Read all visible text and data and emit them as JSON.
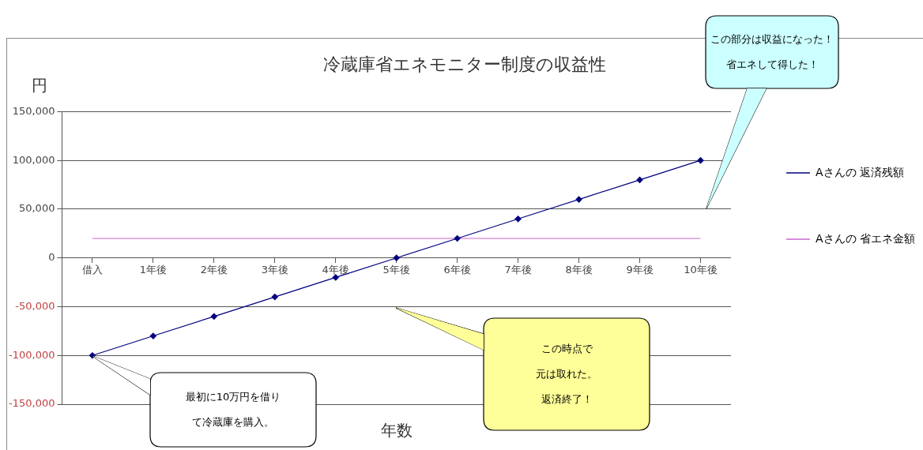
{
  "chart_data": {
    "type": "line",
    "title": "冷蔵庫省エネモニター制度の収益性",
    "xlabel": "年数",
    "ylabel": "円",
    "categories": [
      "借入",
      "1年後",
      "2年後",
      "3年後",
      "4年後",
      "5年後",
      "6年後",
      "7年後",
      "8年後",
      "9年後",
      "10年後"
    ],
    "series": [
      {
        "name": "Aさんの 返済残額",
        "color": "#000080",
        "marker": "diamond",
        "values": [
          -100000,
          -80000,
          -60000,
          -40000,
          -20000,
          0,
          20000,
          40000,
          60000,
          80000,
          100000
        ]
      },
      {
        "name": "Aさんの 省エネ金額",
        "color": "#cc66cc",
        "marker": "none",
        "values": [
          20000,
          20000,
          20000,
          20000,
          20000,
          20000,
          20000,
          20000,
          20000,
          20000,
          20000
        ]
      }
    ],
    "ylim": [
      -150000,
      150000
    ],
    "yticks": [
      {
        "value": -150000,
        "label": "-150,000"
      },
      {
        "value": -100000,
        "label": "-100,000"
      },
      {
        "value": -50000,
        "label": "-50,000"
      },
      {
        "value": 0,
        "label": "0"
      },
      {
        "value": 50000,
        "label": "50,000"
      },
      {
        "value": 100000,
        "label": "100,000"
      },
      {
        "value": 150000,
        "label": "150,000"
      }
    ],
    "grid": "y",
    "legend": "right",
    "annotations": [
      "最初に10万円を借り",
      "て冷蔵庫を購入。",
      "この時点で",
      "元は取れた。",
      "返済終了！",
      "この部分は収益になった！",
      "省エネして得した！"
    ]
  }
}
